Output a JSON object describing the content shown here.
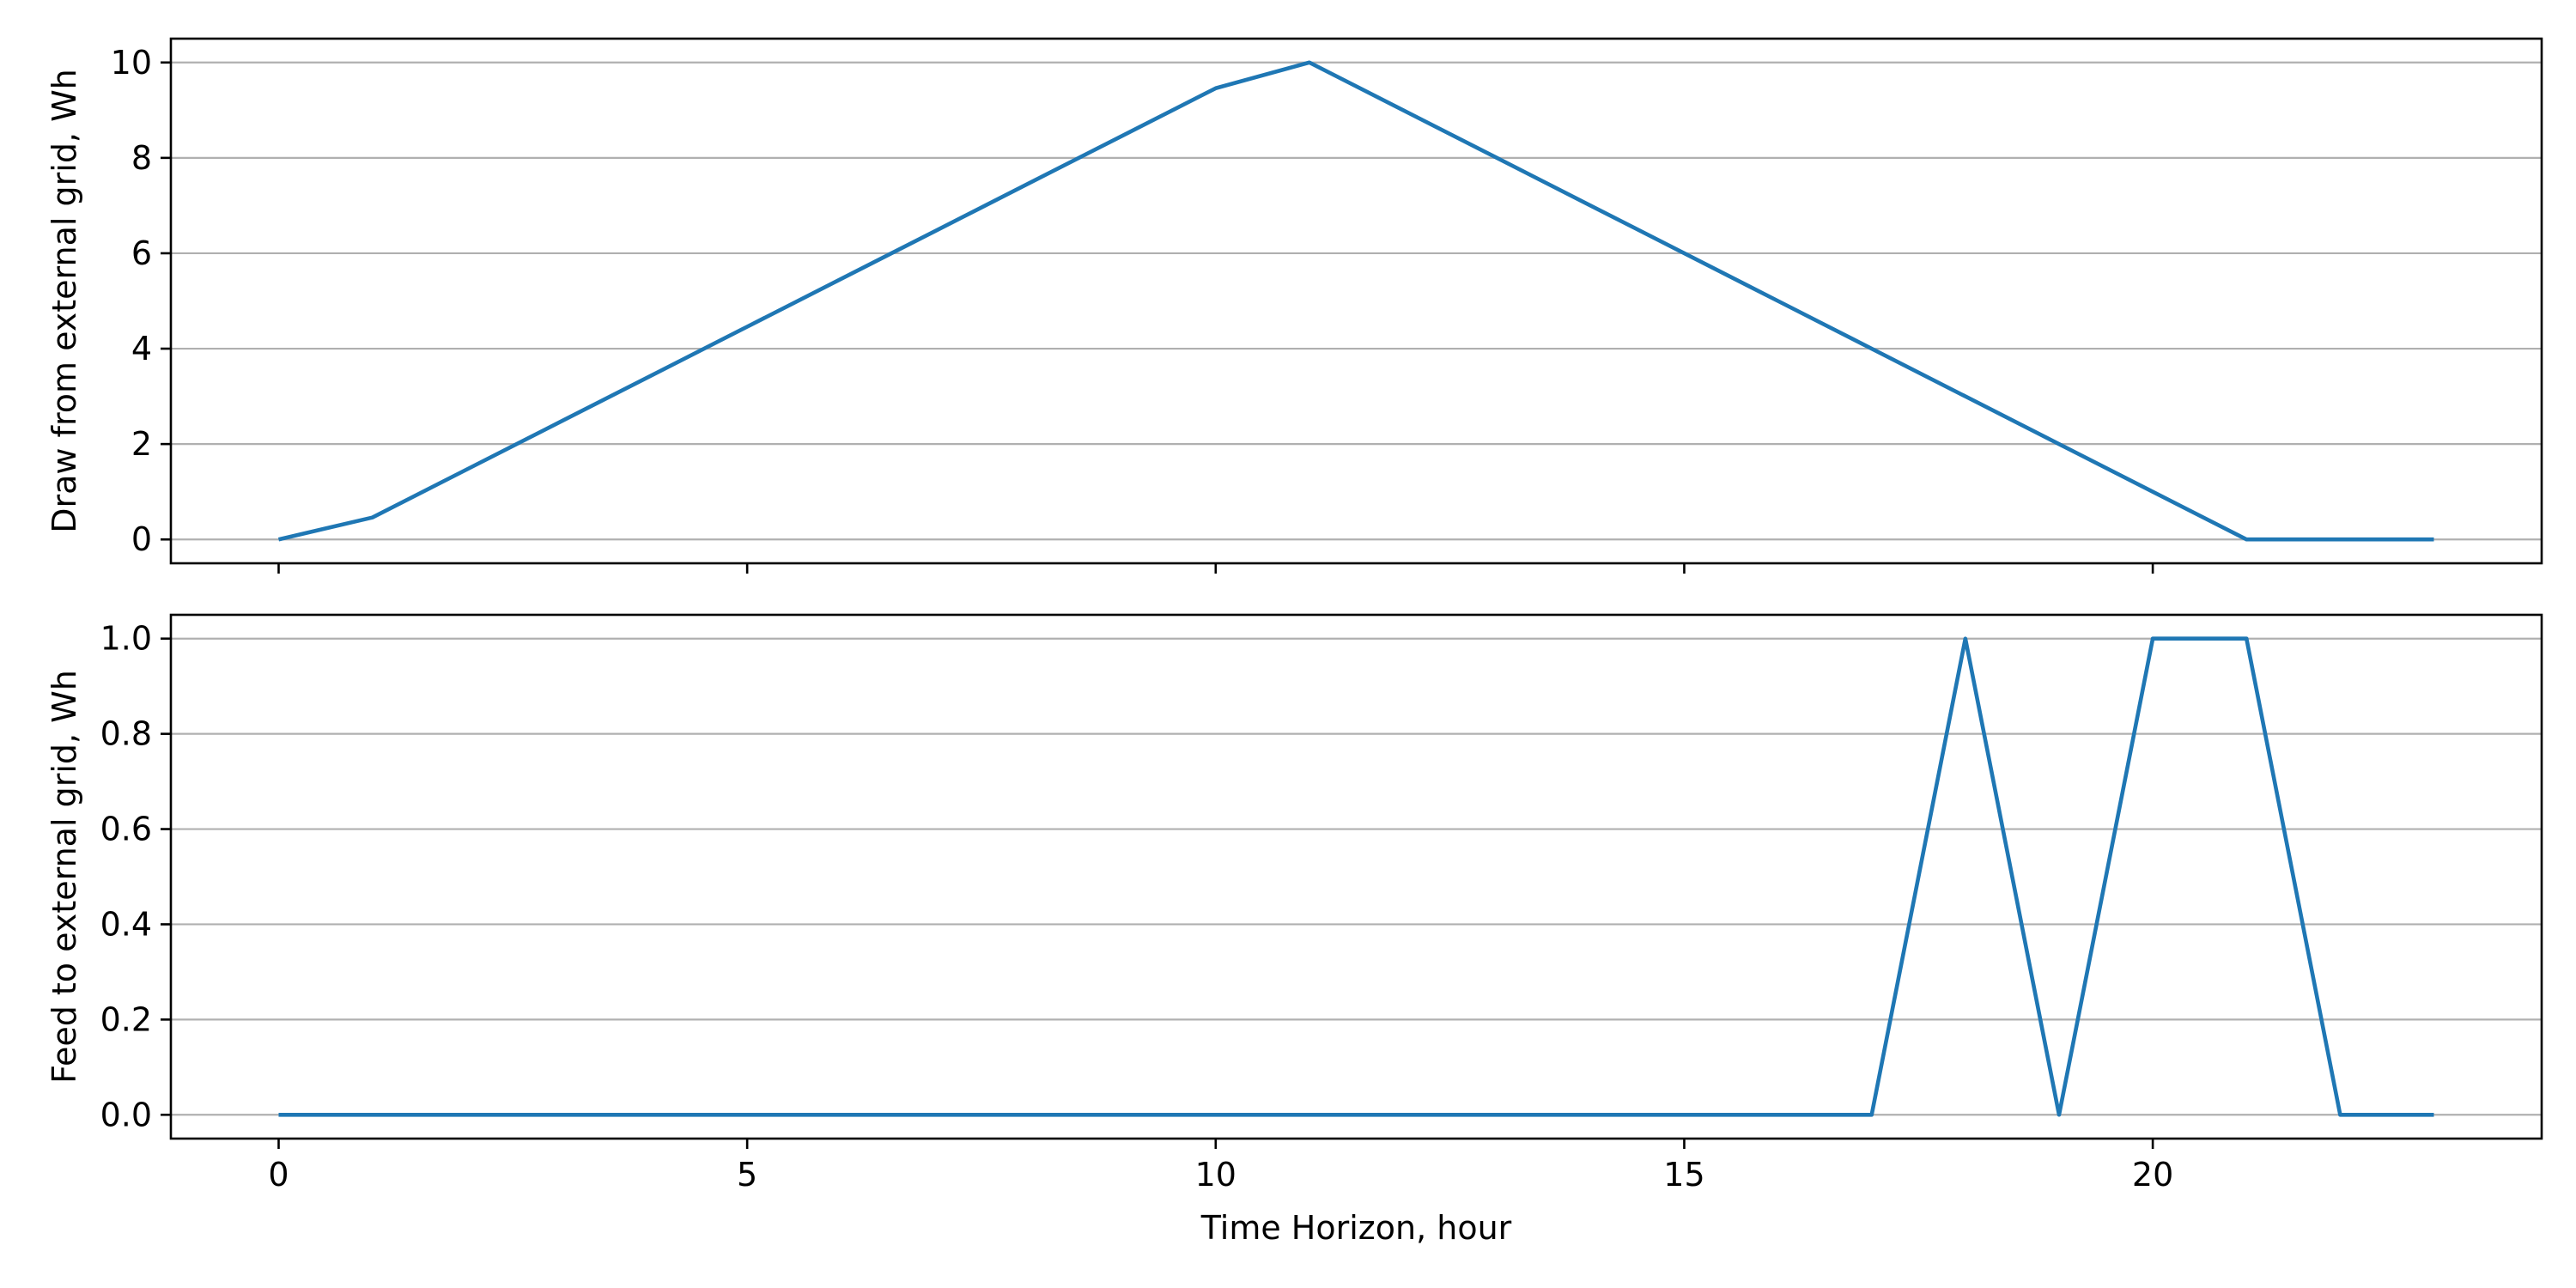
{
  "chart_data": [
    {
      "type": "line",
      "title": "",
      "xlabel": "",
      "ylabel": "Draw from external grid, Wh",
      "x": [
        0,
        1,
        2,
        3,
        4,
        5,
        6,
        7,
        8,
        9,
        10,
        11,
        12,
        13,
        14,
        15,
        16,
        17,
        18,
        19,
        20,
        21,
        22,
        23
      ],
      "series": [
        {
          "values": [
            0,
            0.46,
            1.46,
            2.46,
            3.46,
            4.46,
            5.46,
            6.46,
            7.46,
            8.46,
            9.46,
            10,
            9,
            8,
            7,
            6,
            5,
            4,
            3,
            2,
            1,
            0,
            0,
            0
          ],
          "color": "#1f77b4"
        }
      ],
      "xlim": [
        -1.15,
        24.15
      ],
      "ylim": [
        -0.5,
        10.5
      ],
      "xticks": [
        0,
        5,
        10,
        15,
        20
      ],
      "xtick_labels_visible": false,
      "yticks": [
        0,
        2,
        4,
        6,
        8,
        10
      ],
      "ytick_labels": [
        "0",
        "2",
        "4",
        "6",
        "8",
        "10"
      ],
      "grid": "y"
    },
    {
      "type": "line",
      "title": "",
      "xlabel": "Time Horizon, hour",
      "ylabel": "Feed to external grid, Wh",
      "x": [
        0,
        1,
        2,
        3,
        4,
        5,
        6,
        7,
        8,
        9,
        10,
        11,
        12,
        13,
        14,
        15,
        16,
        17,
        18,
        19,
        20,
        21,
        22,
        23
      ],
      "series": [
        {
          "values": [
            0,
            0,
            0,
            0,
            0,
            0,
            0,
            0,
            0,
            0,
            0,
            0,
            0,
            0,
            0,
            0,
            0,
            0,
            1,
            0,
            1,
            1,
            0,
            0
          ],
          "color": "#1f77b4"
        }
      ],
      "xlim": [
        -1.15,
        24.15
      ],
      "ylim": [
        -0.05,
        1.05
      ],
      "xticks": [
        0,
        5,
        10,
        15,
        20
      ],
      "xtick_labels": [
        "0",
        "5",
        "10",
        "15",
        "20"
      ],
      "xtick_labels_visible": true,
      "yticks": [
        0,
        0.2,
        0.4,
        0.6,
        0.8,
        1.0
      ],
      "ytick_labels": [
        "0.0",
        "0.2",
        "0.4",
        "0.6",
        "0.8",
        "1.0"
      ],
      "grid": "y"
    }
  ]
}
